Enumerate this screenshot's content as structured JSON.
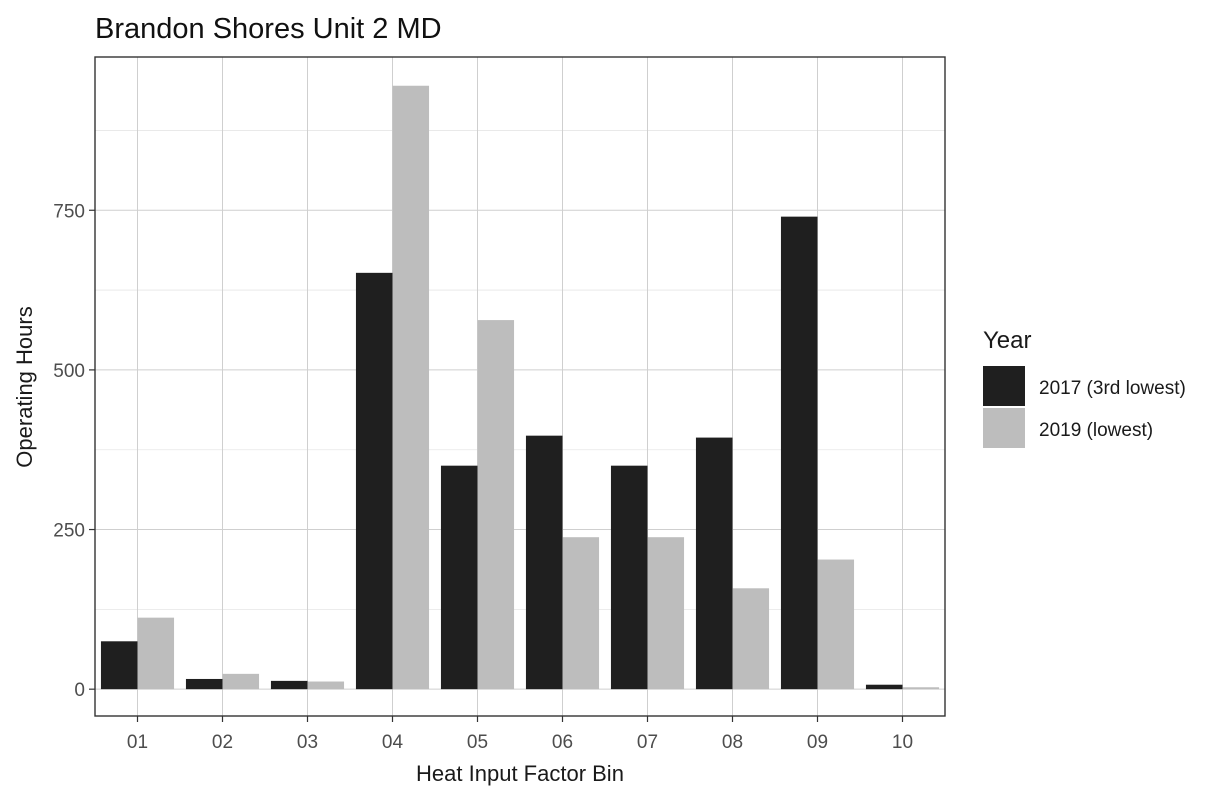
{
  "chart_data": {
    "type": "bar",
    "title": "Brandon Shores Unit 2 MD",
    "xlabel": "Heat Input Factor Bin",
    "ylabel": "Operating Hours",
    "categories": [
      "01",
      "02",
      "03",
      "04",
      "05",
      "06",
      "07",
      "08",
      "09",
      "10"
    ],
    "series": [
      {
        "name": "2017 (3rd lowest)",
        "color": "#1f1f1f",
        "values": [
          75,
          16,
          13,
          652,
          350,
          397,
          350,
          394,
          740,
          7
        ]
      },
      {
        "name": "2019 (lowest)",
        "color": "#bdbdbd",
        "values": [
          112,
          24,
          12,
          945,
          578,
          238,
          238,
          158,
          203,
          3
        ]
      }
    ],
    "ylim": [
      -42,
      990
    ],
    "yticks": [
      0,
      250,
      500,
      750
    ],
    "grid": true,
    "legend": {
      "title": "Year",
      "position": "right"
    }
  }
}
